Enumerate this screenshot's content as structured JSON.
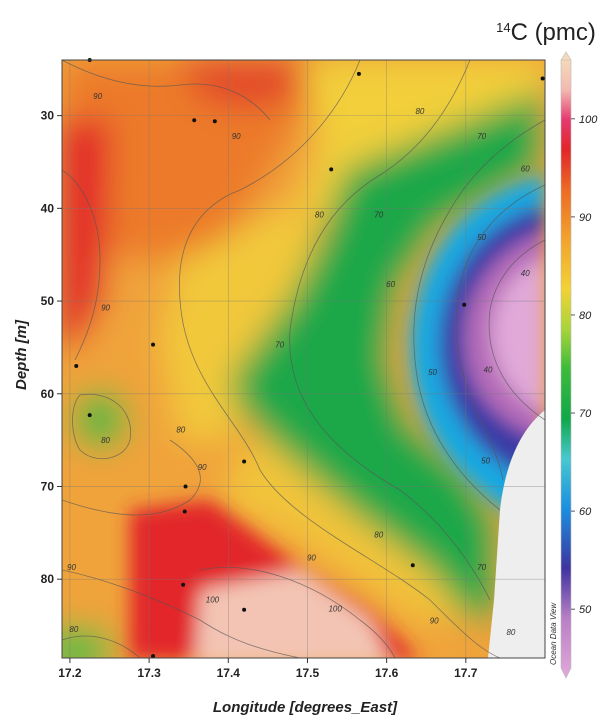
{
  "chart_data": {
    "type": "heatmap",
    "title": "14C (pmc)",
    "title_superscript": "14",
    "title_main": "C (pmc)",
    "xlabel": "Longitude [degrees_East]",
    "ylabel": "Depth [m]",
    "xlim": [
      17.19,
      17.8
    ],
    "ylim": [
      88.5,
      24
    ],
    "y_inverted": true,
    "grid": true,
    "x_ticks": [
      "17.2",
      "17.3",
      "17.4",
      "17.5",
      "17.6",
      "17.7"
    ],
    "y_ticks": [
      "30",
      "40",
      "50",
      "60",
      "70",
      "80"
    ],
    "colorbar": {
      "range": [
        44,
        106
      ],
      "ticks": [
        "50",
        "60",
        "70",
        "80",
        "90",
        "100"
      ],
      "colors": [
        {
          "v": 44,
          "c": "#e2a9d9"
        },
        {
          "v": 50,
          "c": "#b97fc6"
        },
        {
          "v": 55,
          "c": "#3e34a0"
        },
        {
          "v": 61,
          "c": "#1a8fe0"
        },
        {
          "v": 66,
          "c": "#47c8d0"
        },
        {
          "v": 70,
          "c": "#10a84a"
        },
        {
          "v": 75,
          "c": "#3dbb3a"
        },
        {
          "v": 79,
          "c": "#a8d43a"
        },
        {
          "v": 83,
          "c": "#f2d235"
        },
        {
          "v": 88,
          "c": "#f2a32d"
        },
        {
          "v": 93,
          "c": "#ec6a24"
        },
        {
          "v": 97,
          "c": "#e2262a"
        },
        {
          "v": 100,
          "c": "#e6396f"
        },
        {
          "v": 103,
          "c": "#f3b9b0"
        },
        {
          "v": 106,
          "c": "#f5d9b9"
        }
      ]
    },
    "sample_points": [
      {
        "x": 17.225,
        "y": 24.0
      },
      {
        "x": 17.565,
        "y": 25.5
      },
      {
        "x": 17.797,
        "y": 26.0
      },
      {
        "x": 17.357,
        "y": 30.5
      },
      {
        "x": 17.383,
        "y": 30.6
      },
      {
        "x": 17.53,
        "y": 35.8
      },
      {
        "x": 17.698,
        "y": 50.4
      },
      {
        "x": 17.305,
        "y": 54.7
      },
      {
        "x": 17.208,
        "y": 57.0
      },
      {
        "x": 17.225,
        "y": 62.3
      },
      {
        "x": 17.42,
        "y": 67.3
      },
      {
        "x": 17.346,
        "y": 70.0
      },
      {
        "x": 17.345,
        "y": 72.7
      },
      {
        "x": 17.633,
        "y": 78.5
      },
      {
        "x": 17.343,
        "y": 80.6
      },
      {
        "x": 17.42,
        "y": 83.3
      },
      {
        "x": 17.305,
        "y": 88.3
      }
    ],
    "contour_labels": [
      {
        "v": "90",
        "x": 17.235,
        "y": 28.2
      },
      {
        "v": "90",
        "x": 17.41,
        "y": 32.5
      },
      {
        "v": "80",
        "x": 17.642,
        "y": 29.8
      },
      {
        "v": "70",
        "x": 17.72,
        "y": 32.5
      },
      {
        "v": "60",
        "x": 17.775,
        "y": 36.0
      },
      {
        "v": "80",
        "x": 17.515,
        "y": 41.0
      },
      {
        "v": "70",
        "x": 17.59,
        "y": 41.0
      },
      {
        "v": "50",
        "x": 17.72,
        "y": 43.4
      },
      {
        "v": "40",
        "x": 17.775,
        "y": 47.3
      },
      {
        "v": "60",
        "x": 17.605,
        "y": 48.5
      },
      {
        "v": "90",
        "x": 17.245,
        "y": 51.0
      },
      {
        "v": "70",
        "x": 17.465,
        "y": 55.0
      },
      {
        "v": "50",
        "x": 17.658,
        "y": 58.0
      },
      {
        "v": "40",
        "x": 17.728,
        "y": 57.7
      },
      {
        "v": "80",
        "x": 17.34,
        "y": 64.2
      },
      {
        "v": "80",
        "x": 17.245,
        "y": 65.3
      },
      {
        "v": "50",
        "x": 17.725,
        "y": 67.5
      },
      {
        "v": "90",
        "x": 17.367,
        "y": 68.2
      },
      {
        "v": "80",
        "x": 17.59,
        "y": 75.5
      },
      {
        "v": "90",
        "x": 17.202,
        "y": 79.0
      },
      {
        "v": "90",
        "x": 17.505,
        "y": 78.0
      },
      {
        "v": "70",
        "x": 17.72,
        "y": 79.0
      },
      {
        "v": "100",
        "x": 17.38,
        "y": 82.5
      },
      {
        "v": "100",
        "x": 17.535,
        "y": 83.5
      },
      {
        "v": "90",
        "x": 17.66,
        "y": 84.8
      },
      {
        "v": "80",
        "x": 17.757,
        "y": 86.0
      },
      {
        "v": "80",
        "x": 17.205,
        "y": 85.7
      }
    ],
    "watermark": "Ocean Data View"
  }
}
